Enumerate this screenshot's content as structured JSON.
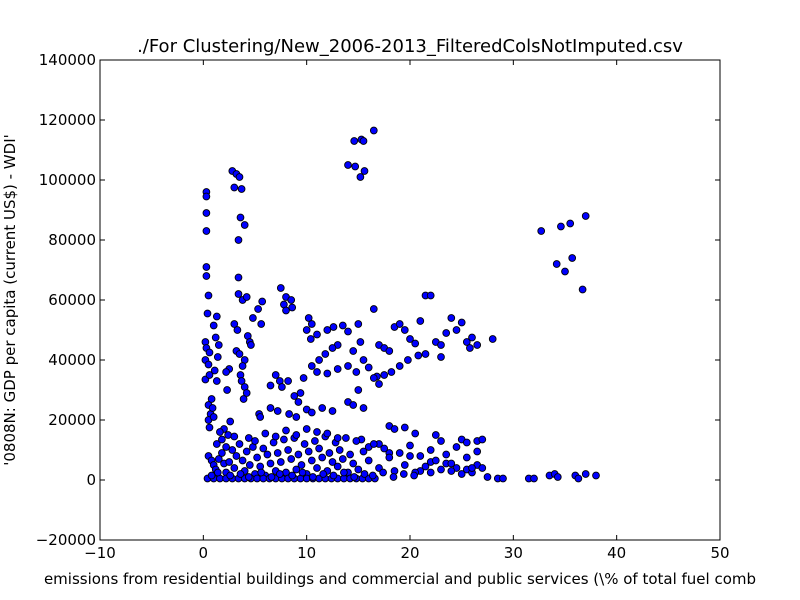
{
  "chart_data": {
    "type": "scatter",
    "title": "./For Clustering/New_2006-2013_FilteredColsNotImputed.csv",
    "xlabel": "emissions from residential buildings and commercial and public services  (\\% of total fuel comb",
    "ylabel": "'0808N: GDP per capita  (current US$) - WDI'",
    "xlim": [
      -10,
      50
    ],
    "ylim": [
      -20000,
      140000
    ],
    "x_ticks": [
      -10,
      0,
      10,
      20,
      30,
      40,
      50
    ],
    "y_ticks": [
      -20000,
      0,
      20000,
      40000,
      60000,
      80000,
      100000,
      120000,
      140000
    ],
    "x_tick_labels": [
      "−10",
      "0",
      "10",
      "20",
      "30",
      "40",
      "50"
    ],
    "y_tick_labels": [
      "−20000",
      "0",
      "20000",
      "40000",
      "60000",
      "80000",
      "100000",
      "120000",
      "140000"
    ],
    "grid": false,
    "marker_color": "#0000ff",
    "marker_edge": "#000000",
    "points": [
      [
        0.3,
        96000
      ],
      [
        0.3,
        94500
      ],
      [
        0.3,
        89000
      ],
      [
        0.3,
        83000
      ],
      [
        0.3,
        71000
      ],
      [
        0.3,
        68000
      ],
      [
        0.5,
        61500
      ],
      [
        0.4,
        55500
      ],
      [
        0.2,
        46000
      ],
      [
        0.3,
        44000
      ],
      [
        0.6,
        42500
      ],
      [
        0.2,
        40000
      ],
      [
        0.5,
        38500
      ],
      [
        0.2,
        33500
      ],
      [
        0.6,
        35000
      ],
      [
        0.8,
        27000
      ],
      [
        0.5,
        25000
      ],
      [
        0.7,
        22000
      ],
      [
        0.5,
        20000
      ],
      [
        0.6,
        17500
      ],
      [
        0.9,
        24000
      ],
      [
        1.0,
        21000
      ],
      [
        1.2,
        47500
      ],
      [
        1.0,
        51500
      ],
      [
        1.3,
        54500
      ],
      [
        1.5,
        45000
      ],
      [
        1.4,
        41000
      ],
      [
        1.1,
        36500
      ],
      [
        1.3,
        33000
      ],
      [
        2.8,
        103000
      ],
      [
        3.2,
        102000
      ],
      [
        3.5,
        101000
      ],
      [
        3.0,
        97500
      ],
      [
        3.7,
        97000
      ],
      [
        3.6,
        87500
      ],
      [
        4.0,
        85000
      ],
      [
        3.4,
        80000
      ],
      [
        3.4,
        67500
      ],
      [
        3.4,
        62000
      ],
      [
        3.8,
        60000
      ],
      [
        4.2,
        61000
      ],
      [
        3.0,
        52000
      ],
      [
        4.8,
        54000
      ],
      [
        5.6,
        52000
      ],
      [
        5.3,
        57000
      ],
      [
        5.7,
        59500
      ],
      [
        3.3,
        50000
      ],
      [
        4.3,
        48000
      ],
      [
        4.5,
        46000
      ],
      [
        3.2,
        43000
      ],
      [
        3.5,
        42000
      ],
      [
        4.0,
        40000
      ],
      [
        3.8,
        38000
      ],
      [
        3.6,
        35000
      ],
      [
        3.7,
        33000
      ],
      [
        4.0,
        31000
      ],
      [
        4.2,
        29000
      ],
      [
        3.9,
        27000
      ],
      [
        4.6,
        45000
      ],
      [
        2.5,
        37000
      ],
      [
        2.2,
        36000
      ],
      [
        2.3,
        30000
      ],
      [
        7.5,
        64000
      ],
      [
        8.0,
        61000
      ],
      [
        8.5,
        60000
      ],
      [
        7.8,
        58500
      ],
      [
        8.6,
        57500
      ],
      [
        8.0,
        56500
      ],
      [
        7.0,
        35000
      ],
      [
        7.4,
        33000
      ],
      [
        7.6,
        31000
      ],
      [
        8.2,
        33000
      ],
      [
        8.8,
        28000
      ],
      [
        9.2,
        26000
      ],
      [
        9.4,
        29000
      ],
      [
        9.7,
        34000
      ],
      [
        6.5,
        31500
      ],
      [
        5.4,
        22000
      ],
      [
        5.5,
        21000
      ],
      [
        6.5,
        24000
      ],
      [
        7.2,
        23000
      ],
      [
        8.3,
        22000
      ],
      [
        9.0,
        21000
      ],
      [
        10.0,
        23500
      ],
      [
        10.5,
        22500
      ],
      [
        11.5,
        24000
      ],
      [
        12.5,
        23000
      ],
      [
        10.2,
        54000
      ],
      [
        10.5,
        52000
      ],
      [
        10.0,
        50000
      ],
      [
        11.0,
        48500
      ],
      [
        10.4,
        47000
      ],
      [
        12.0,
        50000
      ],
      [
        12.6,
        51000
      ],
      [
        13.5,
        51500
      ],
      [
        14.0,
        49500
      ],
      [
        15.0,
        52000
      ],
      [
        15.2,
        46000
      ],
      [
        14.5,
        43000
      ],
      [
        13.0,
        45000
      ],
      [
        12.5,
        44000
      ],
      [
        11.8,
        42000
      ],
      [
        11.2,
        40000
      ],
      [
        10.5,
        38000
      ],
      [
        11.0,
        36000
      ],
      [
        12.0,
        35500
      ],
      [
        13.0,
        37000
      ],
      [
        14.0,
        38000
      ],
      [
        14.8,
        36000
      ],
      [
        15.5,
        40000
      ],
      [
        16.5,
        57000
      ],
      [
        17.0,
        45000
      ],
      [
        17.5,
        44000
      ],
      [
        18.0,
        43000
      ],
      [
        18.5,
        51000
      ],
      [
        19.0,
        52000
      ],
      [
        19.5,
        50000
      ],
      [
        20.0,
        47000
      ],
      [
        20.5,
        45500
      ],
      [
        21.0,
        53000
      ],
      [
        21.5,
        61500
      ],
      [
        22.0,
        61500
      ],
      [
        22.5,
        46000
      ],
      [
        23.0,
        45000
      ],
      [
        23.5,
        49000
      ],
      [
        24.0,
        54000
      ],
      [
        24.5,
        50000
      ],
      [
        25.0,
        52500
      ],
      [
        25.5,
        46000
      ],
      [
        26.0,
        47500
      ],
      [
        26.5,
        45000
      ],
      [
        25.8,
        44000
      ],
      [
        23.0,
        41000
      ],
      [
        21.5,
        42000
      ],
      [
        20.8,
        41500
      ],
      [
        19.8,
        40000
      ],
      [
        19.0,
        38000
      ],
      [
        18.2,
        36000
      ],
      [
        17.5,
        35000
      ],
      [
        16.8,
        34500
      ],
      [
        16.0,
        37500
      ],
      [
        28.0,
        47000
      ],
      [
        16.5,
        34000
      ],
      [
        17.0,
        32000
      ],
      [
        15.0,
        30000
      ],
      [
        14.0,
        26000
      ],
      [
        14.5,
        25000
      ],
      [
        15.5,
        24000
      ],
      [
        15.3,
        13500
      ],
      [
        16.0,
        11000
      ],
      [
        17.0,
        12000
      ],
      [
        18.0,
        18000
      ],
      [
        18.5,
        17000
      ],
      [
        19.5,
        17500
      ],
      [
        20.5,
        15500
      ],
      [
        22.5,
        15000
      ],
      [
        23.0,
        13000
      ],
      [
        25.0,
        13500
      ],
      [
        25.5,
        12500
      ],
      [
        26.5,
        13000
      ],
      [
        27.0,
        13500
      ],
      [
        18.0,
        9000
      ],
      [
        20.0,
        8000
      ],
      [
        22.0,
        6000
      ],
      [
        23.5,
        5500
      ],
      [
        24.5,
        4000
      ],
      [
        25.5,
        3500
      ],
      [
        26.5,
        5000
      ],
      [
        27.0,
        4000
      ],
      [
        21.0,
        3000
      ],
      [
        22.0,
        2500
      ],
      [
        24.0,
        3000
      ],
      [
        26.0,
        2500
      ],
      [
        27.5,
        1000
      ],
      [
        28.5,
        500
      ],
      [
        29.0,
        500
      ],
      [
        31.5,
        500
      ],
      [
        32.0,
        500
      ],
      [
        33.5,
        1500
      ],
      [
        34.0,
        2000
      ],
      [
        34.3,
        1000
      ],
      [
        36.0,
        1500
      ],
      [
        36.3,
        500
      ],
      [
        37.0,
        2000
      ],
      [
        38.0,
        1500
      ],
      [
        14.0,
        105000
      ],
      [
        14.7,
        104500
      ],
      [
        15.2,
        101000
      ],
      [
        15.6,
        103000
      ],
      [
        14.6,
        113000
      ],
      [
        15.3,
        113500
      ],
      [
        15.5,
        113000
      ],
      [
        16.5,
        116500
      ],
      [
        32.7,
        83000
      ],
      [
        34.6,
        84500
      ],
      [
        35.5,
        85500
      ],
      [
        37.0,
        88000
      ],
      [
        34.2,
        72000
      ],
      [
        35.0,
        69500
      ],
      [
        35.7,
        74000
      ],
      [
        36.7,
        63500
      ],
      [
        0.5,
        8000
      ],
      [
        0.8,
        6500
      ],
      [
        1.0,
        5000
      ],
      [
        1.2,
        3500
      ],
      [
        1.5,
        7000
      ],
      [
        1.8,
        9000
      ],
      [
        2.0,
        5500
      ],
      [
        2.2,
        2500
      ],
      [
        2.5,
        6000
      ],
      [
        2.8,
        10000
      ],
      [
        3.0,
        4000
      ],
      [
        3.2,
        8000
      ],
      [
        3.5,
        12000
      ],
      [
        3.8,
        6500
      ],
      [
        4.0,
        3000
      ],
      [
        4.2,
        9500
      ],
      [
        4.5,
        5000
      ],
      [
        4.8,
        11000
      ],
      [
        5.0,
        2000
      ],
      [
        5.2,
        7500
      ],
      [
        5.5,
        4500
      ],
      [
        5.8,
        10500
      ],
      [
        6.0,
        1500
      ],
      [
        6.2,
        8500
      ],
      [
        6.5,
        5500
      ],
      [
        6.8,
        12500
      ],
      [
        7.0,
        3000
      ],
      [
        7.2,
        9000
      ],
      [
        7.5,
        6000
      ],
      [
        7.8,
        13500
      ],
      [
        8.0,
        2500
      ],
      [
        8.2,
        10000
      ],
      [
        8.5,
        7000
      ],
      [
        8.8,
        14000
      ],
      [
        9.0,
        3500
      ],
      [
        9.2,
        8500
      ],
      [
        9.5,
        5000
      ],
      [
        9.8,
        12000
      ],
      [
        10.0,
        2000
      ],
      [
        10.2,
        9500
      ],
      [
        10.5,
        6500
      ],
      [
        10.8,
        13000
      ],
      [
        11.0,
        4000
      ],
      [
        11.2,
        10500
      ],
      [
        11.5,
        7500
      ],
      [
        11.8,
        14500
      ],
      [
        12.0,
        3000
      ],
      [
        12.2,
        9000
      ],
      [
        12.5,
        6000
      ],
      [
        12.8,
        12500
      ],
      [
        13.0,
        4500
      ],
      [
        13.2,
        10000
      ],
      [
        13.5,
        7000
      ],
      [
        13.8,
        14000
      ],
      [
        14.0,
        2500
      ],
      [
        14.2,
        8500
      ],
      [
        14.5,
        5500
      ],
      [
        14.8,
        13000
      ],
      [
        15.0,
        3500
      ],
      [
        15.5,
        9500
      ],
      [
        16.0,
        6500
      ],
      [
        16.5,
        12000
      ],
      [
        17.0,
        4000
      ],
      [
        17.5,
        10500
      ],
      [
        18.0,
        7500
      ],
      [
        18.5,
        3000
      ],
      [
        19.0,
        9000
      ],
      [
        19.5,
        5000
      ],
      [
        20.0,
        11500
      ],
      [
        20.5,
        2500
      ],
      [
        21.0,
        8000
      ],
      [
        21.5,
        4500
      ],
      [
        22.0,
        10000
      ],
      [
        22.5,
        6500
      ],
      [
        23.0,
        3500
      ],
      [
        23.5,
        8500
      ],
      [
        24.0,
        5500
      ],
      [
        24.5,
        11000
      ],
      [
        25.0,
        2000
      ],
      [
        25.5,
        7500
      ],
      [
        26.0,
        4000
      ],
      [
        26.5,
        9500
      ],
      [
        0.4,
        500
      ],
      [
        1.0,
        500
      ],
      [
        1.6,
        500
      ],
      [
        2.2,
        500
      ],
      [
        2.8,
        500
      ],
      [
        3.4,
        500
      ],
      [
        4.0,
        500
      ],
      [
        4.6,
        500
      ],
      [
        5.2,
        500
      ],
      [
        5.8,
        500
      ],
      [
        6.4,
        500
      ],
      [
        7.0,
        500
      ],
      [
        7.6,
        500
      ],
      [
        8.2,
        500
      ],
      [
        8.8,
        500
      ],
      [
        9.4,
        500
      ],
      [
        10.0,
        500
      ],
      [
        10.6,
        500
      ],
      [
        11.2,
        500
      ],
      [
        11.8,
        500
      ],
      [
        12.4,
        500
      ],
      [
        13.0,
        500
      ],
      [
        13.6,
        500
      ],
      [
        14.2,
        500
      ],
      [
        14.8,
        500
      ],
      [
        15.4,
        500
      ],
      [
        16.0,
        500
      ],
      [
        16.6,
        500
      ],
      [
        1.3,
        12000
      ],
      [
        1.8,
        13500
      ],
      [
        2.4,
        15000
      ],
      [
        2.0,
        17000
      ],
      [
        2.6,
        19500
      ],
      [
        3.0,
        14500
      ],
      [
        2.2,
        11000
      ],
      [
        1.6,
        16000
      ],
      [
        4.4,
        14000
      ],
      [
        5.0,
        13000
      ],
      [
        6.0,
        15500
      ],
      [
        7.0,
        14500
      ],
      [
        8.0,
        16500
      ],
      [
        9.0,
        15000
      ],
      [
        10.0,
        17000
      ],
      [
        11.0,
        16000
      ],
      [
        12.0,
        15500
      ],
      [
        13.0,
        14000
      ],
      [
        0.8,
        1500
      ],
      [
        1.4,
        2500
      ],
      [
        2.6,
        1500
      ],
      [
        3.6,
        2000
      ],
      [
        4.4,
        1000
      ],
      [
        5.6,
        2500
      ],
      [
        6.6,
        1000
      ],
      [
        7.4,
        2000
      ],
      [
        8.6,
        1500
      ],
      [
        9.6,
        2500
      ],
      [
        10.6,
        1000
      ],
      [
        11.6,
        2000
      ],
      [
        12.6,
        1500
      ],
      [
        13.6,
        2500
      ],
      [
        14.6,
        1000
      ],
      [
        15.6,
        2000
      ],
      [
        16.4,
        1500
      ],
      [
        17.4,
        2500
      ],
      [
        18.4,
        1000
      ],
      [
        19.4,
        2000
      ],
      [
        20.4,
        1500
      ]
    ]
  }
}
